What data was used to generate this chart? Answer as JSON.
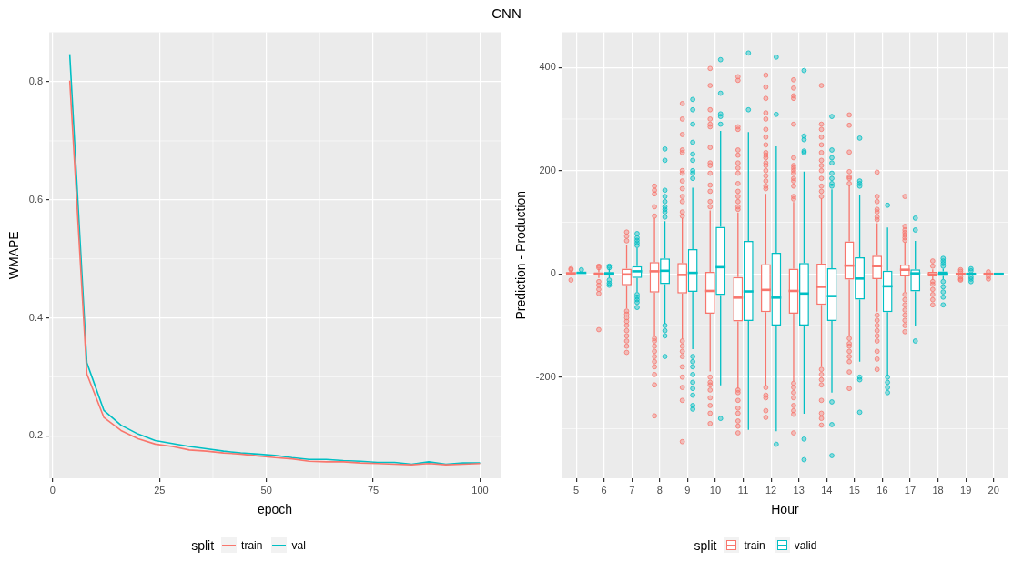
{
  "chart_data": [
    {
      "type": "line",
      "title": "CNN",
      "xlabel": "epoch",
      "ylabel": "WMAPE",
      "legend": "bottom",
      "legend_title": "split",
      "grid": true,
      "x": [
        4,
        8,
        12,
        16,
        20,
        24,
        28,
        32,
        36,
        40,
        44,
        48,
        52,
        56,
        60,
        64,
        68,
        72,
        76,
        80,
        84,
        88,
        92,
        96,
        100
      ],
      "xlim": [
        -0.8,
        104.8
      ],
      "xticks": [
        0,
        25,
        50,
        75,
        100
      ],
      "ylim": [
        0.128,
        0.884
      ],
      "yticks": [
        0.2,
        0.4,
        0.6,
        0.8
      ],
      "series": [
        {
          "name": "train",
          "color": "#f8766d",
          "values": [
            0.802,
            0.305,
            0.231,
            0.209,
            0.195,
            0.186,
            0.182,
            0.176,
            0.174,
            0.171,
            0.169,
            0.166,
            0.163,
            0.161,
            0.157,
            0.156,
            0.156,
            0.154,
            0.153,
            0.152,
            0.151,
            0.153,
            0.151,
            0.152,
            0.153
          ]
        },
        {
          "name": "val",
          "color": "#00bfc4",
          "values": [
            0.847,
            0.324,
            0.243,
            0.218,
            0.203,
            0.192,
            0.187,
            0.182,
            0.178,
            0.174,
            0.171,
            0.169,
            0.167,
            0.163,
            0.16,
            0.16,
            0.158,
            0.157,
            0.155,
            0.155,
            0.152,
            0.156,
            0.152,
            0.154,
            0.154
          ]
        }
      ]
    },
    {
      "type": "box",
      "xlabel": "Hour",
      "ylabel": "Prediction - Production",
      "legend": "bottom",
      "legend_title": "split",
      "grid": true,
      "categories": [
        "5",
        "6",
        "7",
        "8",
        "9",
        "10",
        "11",
        "12",
        "13",
        "14",
        "15",
        "16",
        "17",
        "18",
        "19",
        "20"
      ],
      "ylim": [
        -396,
        468
      ],
      "yticks": [
        -200,
        0,
        200,
        400
      ],
      "series": [
        {
          "name": "train",
          "color": "#f8766d",
          "boxes": [
            {
              "low": -2,
              "q1": 0,
              "median": 1,
              "q3": 3,
              "high": 6,
              "outliers": [
                8,
                10,
                -12
              ]
            },
            {
              "low": -8,
              "q1": -2,
              "median": 0,
              "q3": 3,
              "high": 10,
              "outliers": [
                12,
                15,
                -15,
                -22,
                -30,
                -38,
                -108
              ]
            },
            {
              "low": -67,
              "q1": -22,
              "median": -1,
              "q3": 10,
              "high": 56,
              "outliers": [
                64,
                73,
                81,
                -72,
                -78,
                -85,
                -92,
                -100,
                -110,
                -120,
                -130,
                -140,
                -152
              ]
            },
            {
              "low": -120,
              "q1": -36,
              "median": 5,
              "q3": 23,
              "high": 108,
              "outliers": [
                112,
                130,
                155,
                162,
                170,
                -125,
                -130,
                -140,
                -150,
                -160,
                -170,
                -180,
                -195,
                -215,
                -275
              ]
            },
            {
              "low": -126,
              "q1": -38,
              "median": -2,
              "q3": 21,
              "high": 108,
              "outliers": [
                112,
                120,
                140,
                150,
                165,
                180,
                195,
                200,
                235,
                240,
                270,
                300,
                330,
                -130,
                -140,
                -150,
                -160,
                -180,
                -200,
                -220,
                -245,
                -325
              ]
            },
            {
              "low": -189,
              "q1": -77,
              "median": -33,
              "q3": 4,
              "high": 123,
              "outliers": [
                130,
                140,
                160,
                172,
                195,
                210,
                215,
                245,
                285,
                290,
                300,
                318,
                365,
                398,
                -200,
                -210,
                -215,
                -225,
                -240,
                -255,
                -270,
                -290
              ]
            },
            {
              "low": -222,
              "q1": -92,
              "median": -46,
              "q3": -6,
              "high": 119,
              "outliers": [
                125,
                130,
                140,
                150,
                160,
                175,
                195,
                205,
                215,
                230,
                240,
                280,
                285,
                375,
                382,
                -225,
                -230,
                -245,
                -260,
                -270,
                -285,
                -295,
                -308
              ]
            },
            {
              "low": -217,
              "q1": -74,
              "median": -31,
              "q3": 19,
              "high": 155,
              "outliers": [
                165,
                170,
                180,
                190,
                200,
                210,
                215,
                225,
                230,
                235,
                250,
                265,
                280,
                300,
                312,
                340,
                362,
                385,
                -220,
                -235,
                -240,
                -265,
                -278
              ]
            },
            {
              "low": -208,
              "q1": -77,
              "median": -33,
              "q3": 10,
              "high": 139,
              "outliers": [
                145,
                150,
                170,
                180,
                185,
                195,
                200,
                205,
                210,
                225,
                290,
                340,
                345,
                360,
                376,
                -212,
                -220,
                -230,
                -240,
                -255,
                -265,
                -272,
                -308
              ]
            },
            {
              "low": -180,
              "q1": -60,
              "median": -25,
              "q3": 20,
              "high": 146,
              "outliers": [
                150,
                160,
                170,
                185,
                200,
                210,
                220,
                235,
                250,
                265,
                280,
                290,
                365,
                -185,
                -195,
                -205,
                -215,
                -245,
                -270,
                -280,
                -293
              ]
            },
            {
              "low": -120,
              "q1": -11,
              "median": 16,
              "q3": 63,
              "high": 172,
              "outliers": [
                175,
                185,
                188,
                198,
                236,
                288,
                308,
                -125,
                -135,
                -140,
                -150,
                -160,
                -170,
                -190,
                -222
              ]
            },
            {
              "low": -73,
              "q1": -10,
              "median": 15,
              "q3": 35,
              "high": 98,
              "outliers": [
                105,
                110,
                120,
                125,
                140,
                150,
                197,
                -80,
                -90,
                -100,
                -110,
                -120,
                -130,
                -150,
                -165,
                -185
              ]
            },
            {
              "low": -35,
              "q1": -5,
              "median": 8,
              "q3": 18,
              "high": 61,
              "outliers": [
                65,
                70,
                75,
                80,
                85,
                92,
                150,
                -40,
                -50,
                -60,
                -70,
                -80,
                -90,
                -100,
                -112
              ]
            },
            {
              "low": -12,
              "q1": -5,
              "median": -1,
              "q3": 4,
              "high": 9,
              "outliers": [
                15,
                25,
                -15,
                -20,
                -30,
                -40,
                -50,
                -60
              ]
            },
            {
              "low": -1,
              "q1": -1,
              "median": 0,
              "q3": 1,
              "high": 1,
              "outliers": [
                5,
                8,
                -6,
                -10,
                -12
              ]
            },
            {
              "low": -1,
              "q1": -1,
              "median": 0,
              "q3": 1,
              "high": 1,
              "outliers": [
                4,
                -5,
                -10
              ]
            }
          ]
        },
        {
          "name": "valid",
          "color": "#00bfc4",
          "boxes": [
            {
              "low": 1,
              "q1": 1,
              "median": 2,
              "q3": 3,
              "high": 3,
              "outliers": [
                8
              ]
            },
            {
              "low": -8,
              "q1": -2,
              "median": 1,
              "q3": 3,
              "high": 10,
              "outliers": [
                12,
                15,
                -12,
                -18,
                -22
              ]
            },
            {
              "low": -35,
              "q1": -8,
              "median": 5,
              "q3": 15,
              "high": 50,
              "outliers": [
                55,
                60,
                65,
                70,
                78,
                -40,
                -45,
                -50,
                -55,
                -65
              ]
            },
            {
              "low": -97,
              "q1": -20,
              "median": 6,
              "q3": 30,
              "high": 102,
              "outliers": [
                110,
                120,
                125,
                130,
                140,
                150,
                162,
                220,
                242,
                -100,
                -110,
                -120,
                -160
              ]
            },
            {
              "low": -146,
              "q1": -35,
              "median": 2,
              "q3": 48,
              "high": 167,
              "outliers": [
                185,
                195,
                200,
                220,
                232,
                255,
                290,
                318,
                338,
                -160,
                -170,
                -180,
                -195,
                -210,
                -222,
                -235,
                -255,
                -262
              ]
            },
            {
              "low": -216,
              "q1": -41,
              "median": 13,
              "q3": 91,
              "high": 277,
              "outliers": [
                290,
                305,
                310,
                350,
                415,
                -280
              ]
            },
            {
              "low": -302,
              "q1": -91,
              "median": -34,
              "q3": 64,
              "high": 275,
              "outliers": [
                318,
                428
              ]
            },
            {
              "low": -305,
              "q1": -100,
              "median": -46,
              "q3": 41,
              "high": 247,
              "outliers": [
                309,
                420,
                -330
              ]
            },
            {
              "low": -271,
              "q1": -100,
              "median": -38,
              "q3": 21,
              "high": 198,
              "outliers": [
                235,
                238,
                260,
                267,
                394,
                -320,
                -360
              ]
            },
            {
              "low": -230,
              "q1": -91,
              "median": -43,
              "q3": 11,
              "high": 164,
              "outliers": [
                170,
                175,
                185,
                195,
                215,
                225,
                240,
                305,
                -248,
                -292,
                -352
              ]
            },
            {
              "low": -170,
              "q1": -50,
              "median": -9,
              "q3": 32,
              "high": 152,
              "outliers": [
                170,
                175,
                180,
                263,
                -200,
                -205,
                -268
              ]
            },
            {
              "low": -196,
              "q1": -74,
              "median": -24,
              "q3": 6,
              "high": 90,
              "outliers": [
                133,
                -200,
                -210,
                -220,
                -230
              ]
            },
            {
              "low": -100,
              "q1": -34,
              "median": 1,
              "q3": 9,
              "high": 64,
              "outliers": [
                85,
                108,
                -130
              ]
            },
            {
              "low": -10,
              "q1": -4,
              "median": 0,
              "q3": 5,
              "high": 10,
              "outliers": [
                15,
                20,
                25,
                30,
                -15,
                -25,
                -35,
                -45,
                -60
              ]
            },
            {
              "low": -1,
              "q1": -1,
              "median": 0,
              "q3": 1,
              "high": 1,
              "outliers": [
                6,
                10,
                -6,
                -10,
                -15
              ]
            },
            {
              "low": 0,
              "q1": 0,
              "median": 0,
              "q3": 1,
              "high": 1
            }
          ]
        }
      ]
    }
  ]
}
